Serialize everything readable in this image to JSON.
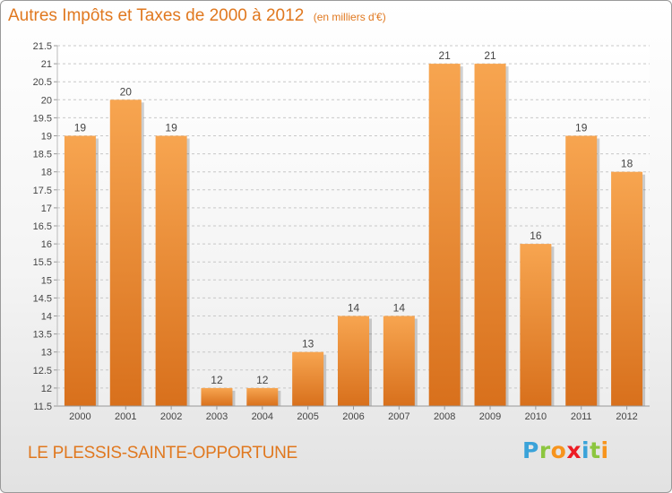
{
  "header": {
    "title": "Autres Impôts et Taxes de 2000 à 2012",
    "subtitle": "(en milliers d'€)"
  },
  "footer": {
    "location": "LE PLESSIS-SAINTE-OPPORTUNE",
    "logo": {
      "text": "Proxiti",
      "letters": [
        {
          "char": "P",
          "color": "#3aa3d9"
        },
        {
          "char": "r",
          "color": "#8cc63f"
        },
        {
          "char": "o",
          "color": "#f7941d"
        },
        {
          "char": "x",
          "color": "#ed1c24"
        },
        {
          "char": "i",
          "color": "#3aa3d9"
        },
        {
          "char": "t",
          "color": "#8cc63f"
        },
        {
          "char": "i",
          "color": "#f7941d"
        }
      ]
    }
  },
  "colors": {
    "bar_light": "#f7a550",
    "bar_dark": "#d8701c",
    "title": "#e0781f",
    "grid": "#c8c8c8"
  },
  "chart_data": {
    "type": "bar",
    "title": "Autres Impôts et Taxes de 2000 à 2012",
    "subtitle": "(en milliers d'€)",
    "xlabel": "",
    "ylabel": "",
    "categories": [
      "2000",
      "2001",
      "2002",
      "2003",
      "2004",
      "2005",
      "2006",
      "2007",
      "2008",
      "2009",
      "2010",
      "2011",
      "2012"
    ],
    "values": [
      19,
      20,
      19,
      12,
      12,
      13,
      14,
      14,
      21,
      21,
      16,
      19,
      18
    ],
    "value_labels": [
      "19",
      "20",
      "19",
      "12",
      "12",
      "13",
      "14",
      "14",
      "21",
      "21",
      "16",
      "19",
      "18"
    ],
    "ylim": [
      11.5,
      21.5
    ],
    "yticks": [
      "11.5",
      "12",
      "12.5",
      "13",
      "13.5",
      "14",
      "14.5",
      "15",
      "15.5",
      "16",
      "16.5",
      "17",
      "17.5",
      "18",
      "18.5",
      "19",
      "19.5",
      "20",
      "20.5",
      "21",
      "21.5"
    ],
    "grid": true,
    "grid_style": "dashed-horizontal"
  }
}
